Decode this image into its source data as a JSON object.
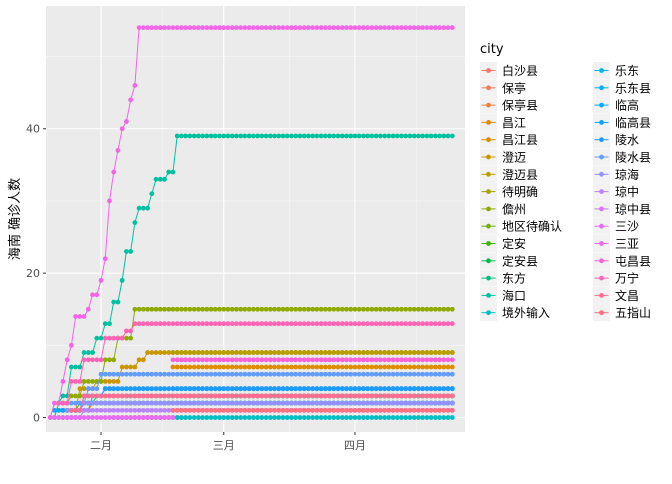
{
  "chart_data": {
    "type": "line",
    "ylabel": "海南 确诊人数",
    "xlabel": "",
    "x_range": [
      "2020-01-19",
      "2020-04-27"
    ],
    "ylim": [
      -2,
      57
    ],
    "y_ticks": [
      0,
      20,
      40
    ],
    "x_ticks": [
      {
        "date": "2020-02-01",
        "label": "二月"
      },
      {
        "date": "2020-03-01",
        "label": "三月"
      },
      {
        "date": "2020-04-01",
        "label": "四月"
      }
    ],
    "grid": true,
    "legend": {
      "title": "city",
      "placement": "right",
      "columns": 2
    },
    "series": [
      {
        "name": "白沙县",
        "color": "#F8766D",
        "points": [
          [
            "2020-02-04",
            0
          ],
          [
            "2020-02-20",
            0
          ]
        ]
      },
      {
        "name": "保亭",
        "color": "#F37B59",
        "points": [
          [
            "2020-01-23",
            1
          ],
          [
            "2020-01-28",
            3
          ],
          [
            "2020-04-24",
            3
          ]
        ]
      },
      {
        "name": "保亭县",
        "color": "#EC8239",
        "points": [
          [
            "2020-02-18",
            3
          ],
          [
            "2020-04-24",
            3
          ]
        ]
      },
      {
        "name": "昌江",
        "color": "#E58700",
        "points": [
          [
            "2020-01-25",
            1
          ],
          [
            "2020-01-30",
            2
          ],
          [
            "2020-04-24",
            2
          ]
        ]
      },
      {
        "name": "昌江县",
        "color": "#DE8C00",
        "points": [
          [
            "2020-02-18",
            7
          ],
          [
            "2020-04-24",
            7
          ]
        ]
      },
      {
        "name": "澄迈",
        "color": "#C99800",
        "points": [
          [
            "2020-01-22",
            1
          ],
          [
            "2020-01-27",
            4
          ],
          [
            "2020-01-31",
            5
          ],
          [
            "2020-02-06",
            7
          ],
          [
            "2020-02-10",
            8
          ],
          [
            "2020-02-12",
            9
          ],
          [
            "2020-04-24",
            9
          ]
        ]
      },
      {
        "name": "澄迈县",
        "color": "#B79F00",
        "points": [
          [
            "2020-02-18",
            9
          ],
          [
            "2020-04-24",
            9
          ]
        ]
      },
      {
        "name": "待明确",
        "color": "#A3A500",
        "points": [
          [
            "2020-02-12",
            0
          ],
          [
            "2020-02-14",
            0
          ]
        ]
      },
      {
        "name": "儋州",
        "color": "#8FAA00",
        "points": [
          [
            "2020-01-22",
            2
          ],
          [
            "2020-01-25",
            3
          ],
          [
            "2020-01-28",
            5
          ],
          [
            "2020-02-02",
            8
          ],
          [
            "2020-02-05",
            11
          ],
          [
            "2020-02-09",
            15
          ],
          [
            "2020-04-24",
            15
          ]
        ]
      },
      {
        "name": "地区待确认",
        "color": "#72B000",
        "points": [
          [
            "2020-01-22",
            0
          ],
          [
            "2020-01-25",
            0
          ]
        ]
      },
      {
        "name": "定安",
        "color": "#39B600",
        "points": [
          [
            "2020-01-24",
            1
          ],
          [
            "2020-01-28",
            2
          ],
          [
            "2020-04-24",
            2
          ]
        ]
      },
      {
        "name": "定安县",
        "color": "#00BB4E",
        "points": [
          [
            "2020-02-18",
            3
          ],
          [
            "2020-04-24",
            3
          ]
        ]
      },
      {
        "name": "东方",
        "color": "#00BF7D",
        "points": [
          [
            "2020-01-23",
            1
          ],
          [
            "2020-01-27",
            2
          ],
          [
            "2020-01-31",
            3
          ],
          [
            "2020-04-24",
            3
          ]
        ]
      },
      {
        "name": "海口",
        "color": "#00C19F",
        "points": [
          [
            "2020-01-21",
            0
          ],
          [
            "2020-01-22",
            2
          ],
          [
            "2020-01-23",
            3
          ],
          [
            "2020-01-25",
            7
          ],
          [
            "2020-01-28",
            9
          ],
          [
            "2020-01-31",
            11
          ],
          [
            "2020-02-02",
            13
          ],
          [
            "2020-02-04",
            16
          ],
          [
            "2020-02-06",
            19
          ],
          [
            "2020-02-07",
            23
          ],
          [
            "2020-02-09",
            27
          ],
          [
            "2020-02-10",
            29
          ],
          [
            "2020-02-13",
            31
          ],
          [
            "2020-02-14",
            33
          ],
          [
            "2020-02-17",
            34
          ],
          [
            "2020-02-19",
            39
          ],
          [
            "2020-04-24",
            39
          ]
        ]
      },
      {
        "name": "境外输入",
        "color": "#00BFC4",
        "points": [
          [
            "2020-02-18",
            0
          ],
          [
            "2020-04-24",
            0
          ]
        ]
      },
      {
        "name": "乐东",
        "color": "#00BBDB",
        "points": [
          [
            "2020-01-24",
            1
          ],
          [
            "2020-01-28",
            2
          ],
          [
            "2020-02-03",
            2
          ],
          [
            "2020-04-24",
            2
          ]
        ]
      },
      {
        "name": "乐东县",
        "color": "#00B4EF",
        "points": [
          [
            "2020-02-18",
            2
          ],
          [
            "2020-04-24",
            2
          ]
        ]
      },
      {
        "name": "临高",
        "color": "#00ACFC",
        "points": [
          [
            "2020-01-21",
            1
          ],
          [
            "2020-01-30",
            3
          ],
          [
            "2020-02-02",
            4
          ],
          [
            "2020-04-24",
            4
          ]
        ]
      },
      {
        "name": "临高县",
        "color": "#02A4FF",
        "points": [
          [
            "2020-02-18",
            4
          ],
          [
            "2020-04-24",
            4
          ]
        ]
      },
      {
        "name": "陵水",
        "color": "#1D9BFF",
        "points": [
          [
            "2020-01-23",
            1
          ],
          [
            "2020-01-28",
            3
          ],
          [
            "2020-02-02",
            4
          ],
          [
            "2020-02-07",
            4
          ],
          [
            "2020-04-24",
            4
          ]
        ]
      },
      {
        "name": "陵水县",
        "color": "#619CFF",
        "points": [
          [
            "2020-01-24",
            2
          ],
          [
            "2020-01-29",
            4
          ],
          [
            "2020-02-01",
            6
          ],
          [
            "2020-04-24",
            6
          ]
        ]
      },
      {
        "name": "琼海",
        "color": "#9590FF",
        "points": [
          [
            "2020-01-24",
            1
          ],
          [
            "2020-01-28",
            2
          ],
          [
            "2020-04-24",
            2
          ]
        ]
      },
      {
        "name": "琼中",
        "color": "#B983FF",
        "points": [
          [
            "2020-01-24",
            0
          ],
          [
            "2020-01-28",
            1
          ],
          [
            "2020-04-24",
            1
          ]
        ]
      },
      {
        "name": "琼中县",
        "color": "#D575FE",
        "points": [
          [
            "2020-02-18",
            1
          ],
          [
            "2020-04-24",
            1
          ]
        ]
      },
      {
        "name": "三沙",
        "color": "#E76BF3",
        "points": [
          [
            "2020-01-20",
            0
          ],
          [
            "2020-02-18",
            0
          ]
        ]
      },
      {
        "name": "三亚",
        "color": "#F265E7",
        "points": [
          [
            "2020-01-20",
            0
          ],
          [
            "2020-01-21",
            2
          ],
          [
            "2020-01-23",
            5
          ],
          [
            "2020-01-24",
            8
          ],
          [
            "2020-01-25",
            10
          ],
          [
            "2020-01-26",
            14
          ],
          [
            "2020-01-29",
            15
          ],
          [
            "2020-01-30",
            17
          ],
          [
            "2020-02-01",
            19
          ],
          [
            "2020-02-02",
            22
          ],
          [
            "2020-02-03",
            30
          ],
          [
            "2020-02-04",
            34
          ],
          [
            "2020-02-05",
            37
          ],
          [
            "2020-02-06",
            40
          ],
          [
            "2020-02-07",
            41
          ],
          [
            "2020-02-08",
            44
          ],
          [
            "2020-02-09",
            46
          ],
          [
            "2020-02-10",
            54
          ],
          [
            "2020-04-24",
            54
          ]
        ]
      },
      {
        "name": "屯昌县",
        "color": "#FB61D7",
        "points": [
          [
            "2020-02-18",
            8
          ],
          [
            "2020-04-24",
            8
          ]
        ]
      },
      {
        "name": "万宁",
        "color": "#FF63B6",
        "points": [
          [
            "2020-01-22",
            2
          ],
          [
            "2020-01-25",
            5
          ],
          [
            "2020-01-28",
            8
          ],
          [
            "2020-02-02",
            11
          ],
          [
            "2020-02-07",
            12
          ],
          [
            "2020-02-09",
            13
          ],
          [
            "2020-04-24",
            13
          ]
        ]
      },
      {
        "name": "文昌",
        "color": "#FF6C92",
        "points": [
          [
            "2020-01-25",
            1
          ],
          [
            "2020-01-28",
            3
          ],
          [
            "2020-04-24",
            3
          ]
        ]
      },
      {
        "name": "五指山",
        "color": "#FC717F",
        "points": [
          [
            "2020-02-18",
            1
          ],
          [
            "2020-04-24",
            1
          ]
        ]
      }
    ]
  }
}
